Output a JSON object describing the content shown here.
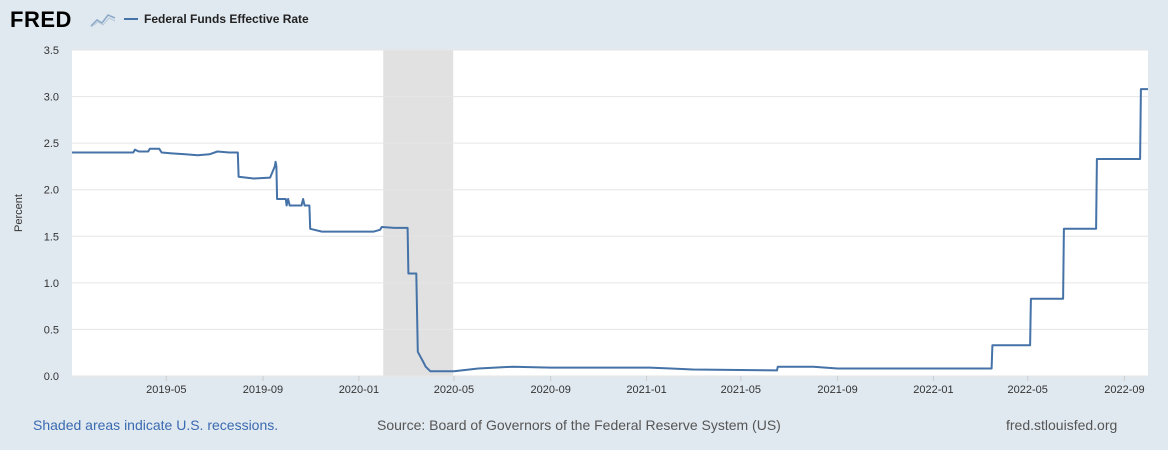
{
  "header": {
    "logo_text": "FRED",
    "logo_icon": "line-chart-icon",
    "series_color": "#4572a7"
  },
  "footer": {
    "recession_note": "Shaded areas indicate U.S. recessions.",
    "source": "Source: Board of Governors of the Federal Reserve System (US)",
    "site": "fred.stlouisfed.org"
  },
  "chart_data": {
    "type": "line",
    "title": "",
    "xlabel": "",
    "ylabel": "Percent",
    "series": [
      {
        "name": "Federal Funds Effective Rate",
        "color": "#4572a7",
        "points": [
          [
            "2019-01-01",
            2.4
          ],
          [
            "2019-03-20",
            2.4
          ],
          [
            "2019-03-22",
            2.43
          ],
          [
            "2019-03-27",
            2.41
          ],
          [
            "2019-04-08",
            2.41
          ],
          [
            "2019-04-10",
            2.44
          ],
          [
            "2019-04-22",
            2.44
          ],
          [
            "2019-04-25",
            2.4
          ],
          [
            "2019-05-08",
            2.39
          ],
          [
            "2019-05-25",
            2.38
          ],
          [
            "2019-06-10",
            2.37
          ],
          [
            "2019-06-25",
            2.38
          ],
          [
            "2019-07-05",
            2.41
          ],
          [
            "2019-07-20",
            2.4
          ],
          [
            "2019-07-31",
            2.4
          ],
          [
            "2019-08-01",
            2.14
          ],
          [
            "2019-08-20",
            2.12
          ],
          [
            "2019-09-10",
            2.13
          ],
          [
            "2019-09-16",
            2.25
          ],
          [
            "2019-09-17",
            2.3
          ],
          [
            "2019-09-18",
            2.25
          ],
          [
            "2019-09-19",
            1.9
          ],
          [
            "2019-09-30",
            1.9
          ],
          [
            "2019-10-01",
            1.83
          ],
          [
            "2019-10-03",
            1.9
          ],
          [
            "2019-10-05",
            1.83
          ],
          [
            "2019-10-20",
            1.83
          ],
          [
            "2019-10-22",
            1.9
          ],
          [
            "2019-10-24",
            1.83
          ],
          [
            "2019-10-30",
            1.83
          ],
          [
            "2019-10-31",
            1.58
          ],
          [
            "2019-11-15",
            1.55
          ],
          [
            "2019-12-31",
            1.55
          ],
          [
            "2020-01-20",
            1.55
          ],
          [
            "2020-01-28",
            1.57
          ],
          [
            "2020-01-30",
            1.6
          ],
          [
            "2020-02-15",
            1.59
          ],
          [
            "2020-03-03",
            1.59
          ],
          [
            "2020-03-04",
            1.1
          ],
          [
            "2020-03-14",
            1.1
          ],
          [
            "2020-03-16",
            0.26
          ],
          [
            "2020-03-23",
            0.15
          ],
          [
            "2020-03-26",
            0.1
          ],
          [
            "2020-04-01",
            0.05
          ],
          [
            "2020-05-01",
            0.05
          ],
          [
            "2020-06-01",
            0.08
          ],
          [
            "2020-07-15",
            0.1
          ],
          [
            "2020-09-01",
            0.09
          ],
          [
            "2020-12-31",
            0.09
          ],
          [
            "2021-01-05",
            0.09
          ],
          [
            "2021-02-01",
            0.08
          ],
          [
            "2021-03-01",
            0.07
          ],
          [
            "2021-06-16",
            0.06
          ],
          [
            "2021-06-17",
            0.1
          ],
          [
            "2021-08-01",
            0.1
          ],
          [
            "2021-09-01",
            0.08
          ],
          [
            "2021-12-31",
            0.08
          ],
          [
            "2022-03-16",
            0.08
          ],
          [
            "2022-03-17",
            0.33
          ],
          [
            "2022-05-04",
            0.33
          ],
          [
            "2022-05-05",
            0.83
          ],
          [
            "2022-06-15",
            0.83
          ],
          [
            "2022-06-16",
            1.58
          ],
          [
            "2022-07-27",
            1.58
          ],
          [
            "2022-07-28",
            2.33
          ],
          [
            "2022-09-21",
            2.33
          ],
          [
            "2022-09-22",
            3.08
          ],
          [
            "2022-10-01",
            3.08
          ]
        ]
      }
    ],
    "x_ticks": [
      "2019-05",
      "2019-09",
      "2020-01",
      "2020-05",
      "2020-09",
      "2021-01",
      "2021-05",
      "2021-09",
      "2022-01",
      "2022-05",
      "2022-09"
    ],
    "y_ticks": [
      "0.0",
      "0.5",
      "1.0",
      "1.5",
      "2.0",
      "2.5",
      "3.0",
      "3.5"
    ],
    "ylim": [
      0,
      3.5
    ],
    "xlim": [
      "2019-01-01",
      "2022-10-01"
    ],
    "recessions": [
      {
        "start": "2020-02-01",
        "end": "2020-04-30"
      }
    ],
    "recession_color": "#e1e1e1",
    "grid": true,
    "legend_position": "top-left"
  }
}
